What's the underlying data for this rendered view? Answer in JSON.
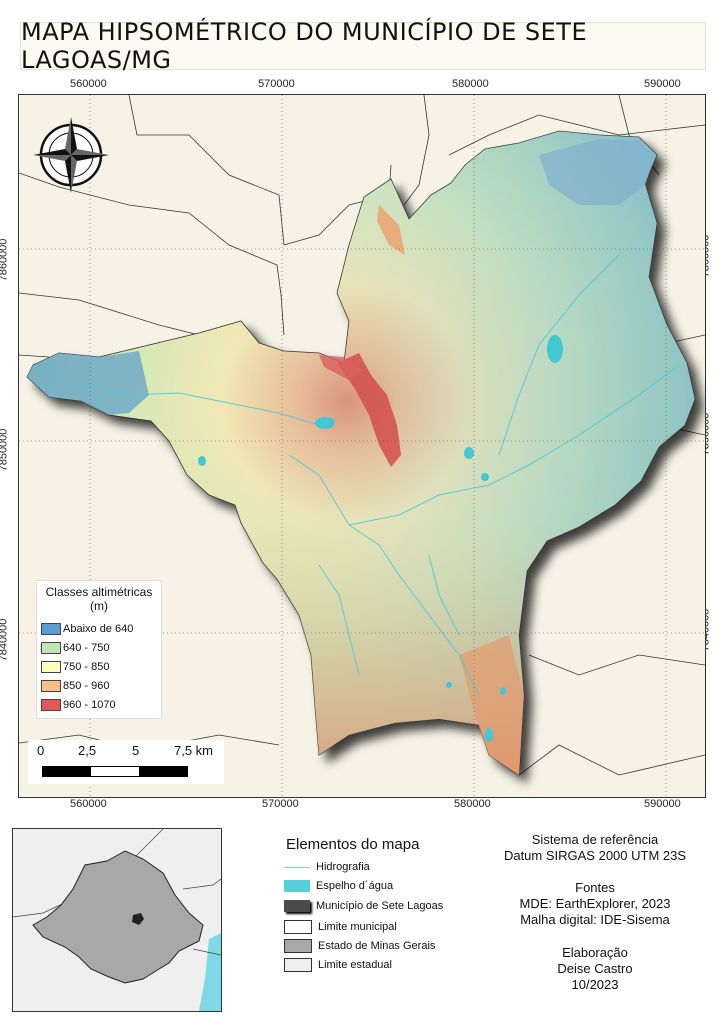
{
  "title": "MAPA HIPSOMÉTRICO DO MUNICÍPIO DE SETE LAGOAS/MG",
  "grid": {
    "x_labels": [
      "560000",
      "570000",
      "580000",
      "590000"
    ],
    "y_labels": [
      "7860000",
      "7850000",
      "7840000"
    ]
  },
  "legend": {
    "title_line1": "Classes altimétricas",
    "title_line2": "(m)",
    "classes": [
      {
        "label": "Abaixo de 640",
        "color": "#5b9bd0"
      },
      {
        "label": "640 - 750",
        "color": "#bfe6b4"
      },
      {
        "label": "750 - 850",
        "color": "#ffffc0"
      },
      {
        "label": "850 - 960",
        "color": "#f7c08a"
      },
      {
        "label": "960 - 1070",
        "color": "#e05a5a"
      }
    ]
  },
  "scale_bar": {
    "labels": [
      "0",
      "2,5",
      "5",
      "7,5 km"
    ]
  },
  "elements": {
    "title": "Elementos do mapa",
    "items": [
      {
        "label": "Hidrografia",
        "icon": "line-icon",
        "color": "#7fd3e6"
      },
      {
        "label": "Espelho d´água",
        "icon": "water-body-icon",
        "color": "#55d0d6"
      },
      {
        "label": "Município de Sete Lagoas",
        "icon": "municipality-icon",
        "color": "#4a4a4a"
      },
      {
        "label": "Limite municipal",
        "icon": "municipal-boundary-icon",
        "color": "#ffffff"
      },
      {
        "label": "Estado de Minas Gerais",
        "icon": "state-icon",
        "color": "#a8a8a8"
      },
      {
        "label": "Limite estadual",
        "icon": "state-boundary-icon",
        "color": "#eeeeee"
      }
    ]
  },
  "info": {
    "ref_title": "Sistema de referência",
    "ref_value": "Datum SIRGAS 2000 UTM 23S",
    "sources_title": "Fontes",
    "source1": "MDE: EarthExplorer, 2023",
    "source2": "Malha digital: IDE-Sisema",
    "author_title": "Elaboração",
    "author": "Deise Castro",
    "date": "10/2023"
  }
}
